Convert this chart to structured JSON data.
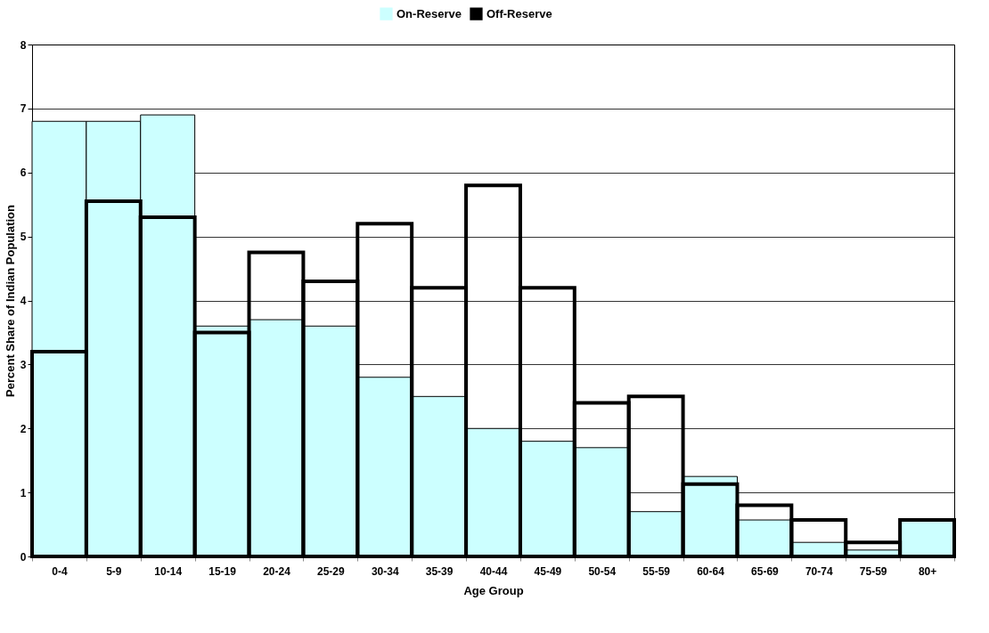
{
  "chart_data": {
    "type": "bar",
    "categories": [
      "0-4",
      "5-9",
      "10-14",
      "15-19",
      "20-24",
      "25-29",
      "30-34",
      "35-39",
      "40-44",
      "45-49",
      "50-54",
      "55-59",
      "60-64",
      "65-69",
      "70-74",
      "75-59",
      "80+"
    ],
    "series": [
      {
        "name": "On-Reserve",
        "color": "#ccffff",
        "values": [
          6.8,
          6.8,
          6.9,
          3.6,
          3.7,
          3.6,
          2.8,
          2.5,
          2.0,
          1.8,
          1.7,
          0.7,
          1.25,
          0.57,
          0.22,
          0.1,
          0.55
        ]
      },
      {
        "name": "Off-Reserve",
        "color": "#000000",
        "values": [
          3.2,
          5.55,
          5.3,
          3.5,
          4.75,
          4.3,
          5.2,
          4.2,
          5.8,
          4.2,
          2.4,
          2.5,
          1.13,
          0.8,
          0.57,
          0.22,
          0.57
        ]
      }
    ],
    "xlabel": "Age Group",
    "ylabel": "Percent Share of Indian Population",
    "ylim": [
      0,
      8
    ],
    "yticks": [
      0,
      1,
      2,
      3,
      4,
      5,
      6,
      7,
      8
    ],
    "grid": "y",
    "legend": "top"
  }
}
